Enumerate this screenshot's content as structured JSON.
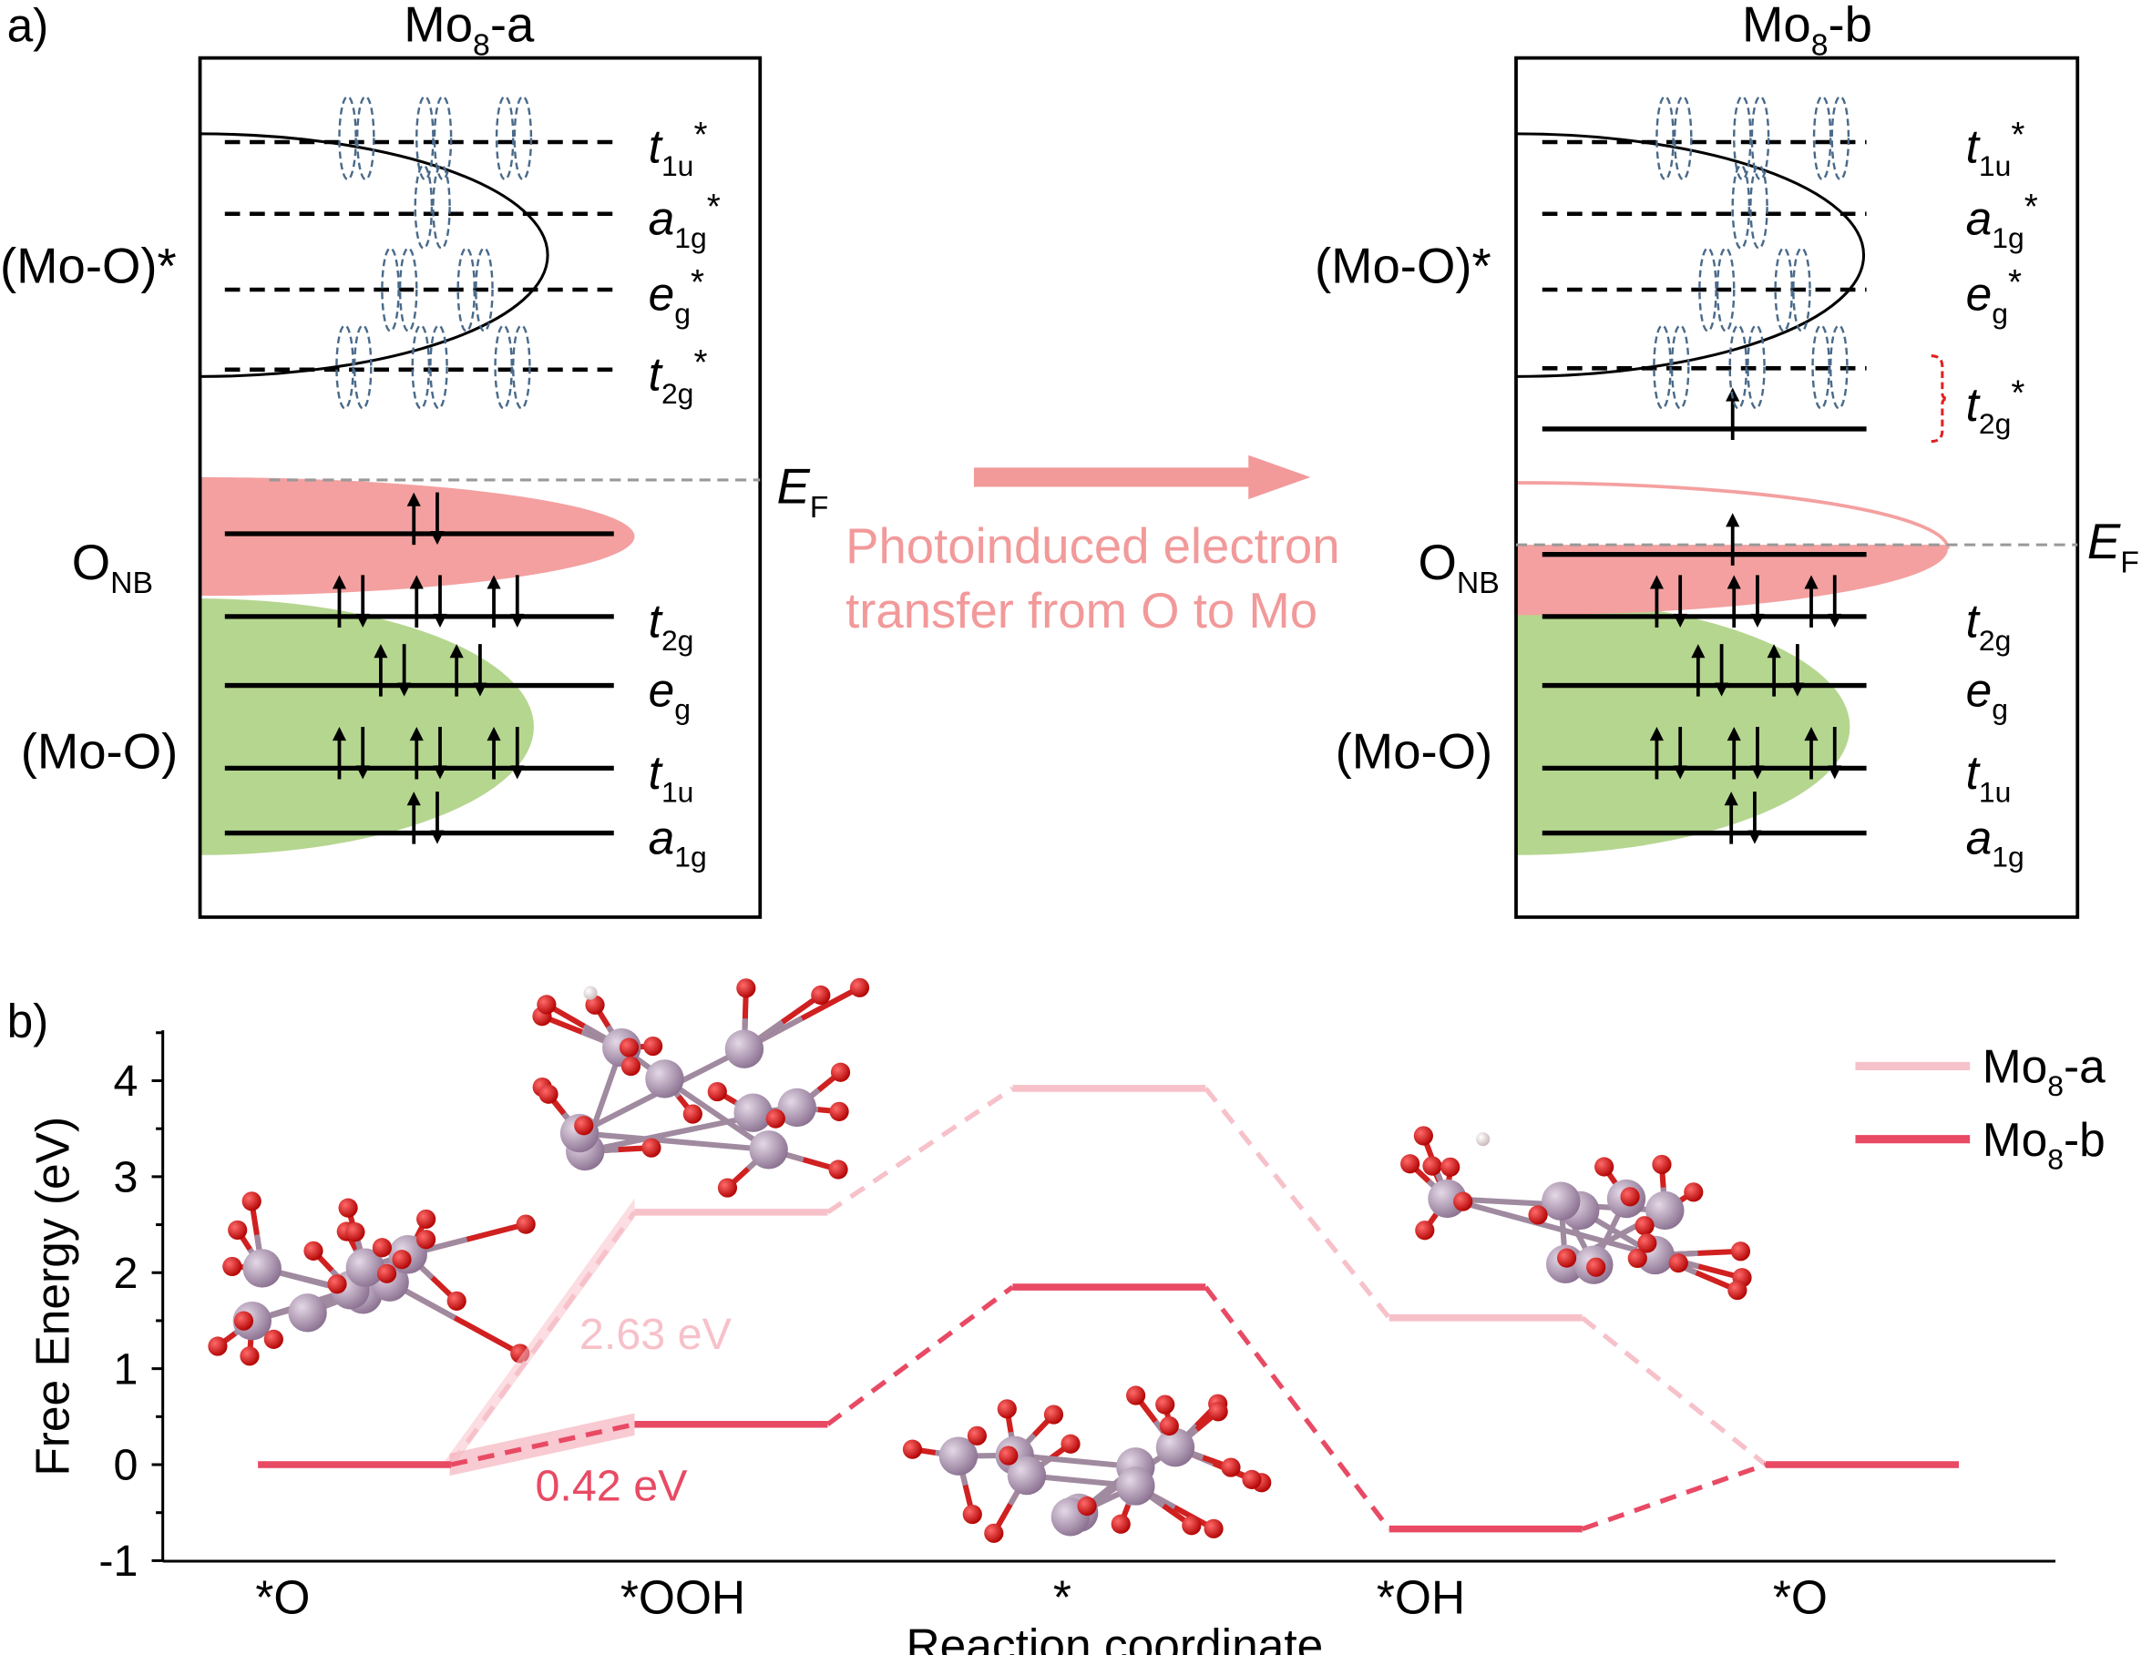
{
  "panel_a": {
    "label": "a)",
    "diagrams": [
      {
        "title": {
          "main": "Mo",
          "sub": "8",
          "rest": "-a"
        },
        "antibonding_label": "(Mo-O)*",
        "onb_label": {
          "main": "O",
          "sub": "NB"
        },
        "bonding_label": "(Mo-O)",
        "fermi_label": {
          "main": "E",
          "sub": "F"
        }
      },
      {
        "title": {
          "main": "Mo",
          "sub": "8",
          "rest": "-b"
        },
        "antibonding_label": "(Mo-O)*",
        "onb_label": {
          "main": "O",
          "sub": "NB"
        },
        "bonding_label": "(Mo-O)",
        "fermi_label": {
          "main": "E",
          "sub": "F"
        }
      }
    ],
    "levels": [
      {
        "main": "t",
        "sub": "1u",
        "sup": "*"
      },
      {
        "main": "a",
        "sub": "1g",
        "sup": "*"
      },
      {
        "main": "e",
        "sub": "g",
        "sup": "*"
      },
      {
        "main": "t",
        "sub": "2g",
        "sup": "*"
      },
      {
        "main": "t",
        "sub": "2g",
        "sup": ""
      },
      {
        "main": "e",
        "sub": "g",
        "sup": ""
      },
      {
        "main": "t",
        "sub": "1u",
        "sup": ""
      },
      {
        "main": "a",
        "sub": "1g",
        "sup": ""
      }
    ],
    "transfer_text": [
      "Photoinduced electron",
      "transfer from O to Mo"
    ],
    "colors": {
      "onb_band": "#f4a0a0",
      "bonding_band": "#b5d68f",
      "orbital": "#4a6a8a",
      "arrow": "#f2999a"
    }
  },
  "panel_b": {
    "label": "b)"
  },
  "chart_data": {
    "type": "line",
    "title": "",
    "xlabel": "Reaction coordinate",
    "ylabel": "Free Energy (eV)",
    "categories": [
      "*O",
      "*OOH",
      "*",
      "*OH",
      "*O"
    ],
    "ylim": [
      -1,
      4.5
    ],
    "yticks": [
      -1,
      0,
      1,
      2,
      3,
      4
    ],
    "legend_position": "top-right",
    "series": [
      {
        "name": {
          "main": "Mo",
          "sub": "8",
          "rest": "-a"
        },
        "color": "#f7c1ca",
        "values": [
          0,
          2.63,
          3.92,
          1.53,
          0
        ]
      },
      {
        "name": {
          "main": "Mo",
          "sub": "8",
          "rest": "-b"
        },
        "color": "#e84a64",
        "values": [
          0,
          0.42,
          1.85,
          -0.67,
          0
        ]
      }
    ],
    "annotations": [
      {
        "text": "2.63 eV",
        "color": "#f7c1ca"
      },
      {
        "text": "0.42 eV",
        "color": "#e84a64"
      }
    ]
  }
}
